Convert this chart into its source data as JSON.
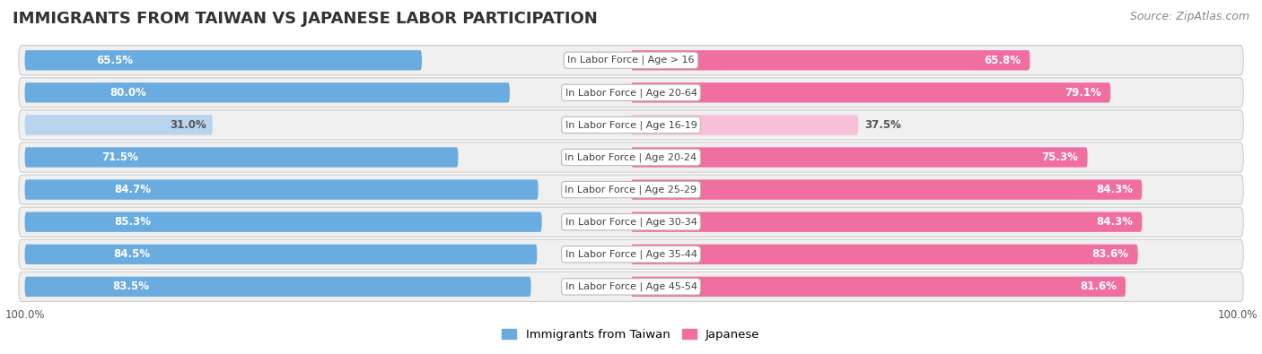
{
  "title": "IMMIGRANTS FROM TAIWAN VS JAPANESE LABOR PARTICIPATION",
  "source": "Source: ZipAtlas.com",
  "categories": [
    "In Labor Force | Age > 16",
    "In Labor Force | Age 20-64",
    "In Labor Force | Age 16-19",
    "In Labor Force | Age 20-24",
    "In Labor Force | Age 25-29",
    "In Labor Force | Age 30-34",
    "In Labor Force | Age 35-44",
    "In Labor Force | Age 45-54"
  ],
  "taiwan_values": [
    65.5,
    80.0,
    31.0,
    71.5,
    84.7,
    85.3,
    84.5,
    83.5
  ],
  "japanese_values": [
    65.8,
    79.1,
    37.5,
    75.3,
    84.3,
    84.3,
    83.6,
    81.6
  ],
  "taiwan_color": "#6aace0",
  "taiwan_color_light": "#b8d4ef",
  "japanese_color": "#f06fa0",
  "japanese_color_light": "#f8c0d8",
  "bar_height": 0.62,
  "row_bg_color": "#e8e8e8",
  "row_bg_inner": "#f5f5f5",
  "label_fontsize": 8.0,
  "value_fontsize": 8.5,
  "title_fontsize": 13,
  "source_fontsize": 9,
  "legend_fontsize": 9.5,
  "axis_label_fontsize": 8.5,
  "value_threshold": 45,
  "total_width": 100
}
